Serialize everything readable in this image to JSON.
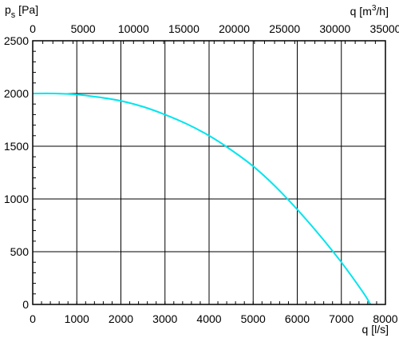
{
  "chart_data": {
    "type": "line",
    "title": "",
    "ylabel": {
      "main": "p",
      "sub": "s",
      "unit": " [Pa]"
    },
    "xlabel": "q [l/s]",
    "x2label": {
      "main": "q [m",
      "sup": "3",
      "unit": "/h]"
    },
    "xlim": [
      0,
      8000
    ],
    "ylim": [
      0,
      2500
    ],
    "x2lim": [
      0,
      35000
    ],
    "x_ticks": [
      "0",
      "1000",
      "2000",
      "3000",
      "4000",
      "5000",
      "6000",
      "7000",
      "8000"
    ],
    "x2_ticks": [
      "0",
      "5000",
      "10000",
      "15000",
      "20000",
      "25000",
      "30000",
      "35000"
    ],
    "y_ticks": [
      "0",
      "500",
      "1000",
      "1500",
      "2000",
      "2500"
    ],
    "grid": true,
    "series": [
      {
        "color": "#00e5ee",
        "x": [
          0,
          500,
          1000,
          1500,
          2000,
          2500,
          3000,
          3500,
          4000,
          4500,
          5000,
          5500,
          6000,
          6500,
          7000,
          7500,
          7660
        ],
        "y": [
          2000,
          2000,
          1990,
          1965,
          1930,
          1875,
          1800,
          1710,
          1600,
          1465,
          1310,
          1120,
          900,
          660,
          400,
          110,
          0
        ]
      }
    ]
  }
}
